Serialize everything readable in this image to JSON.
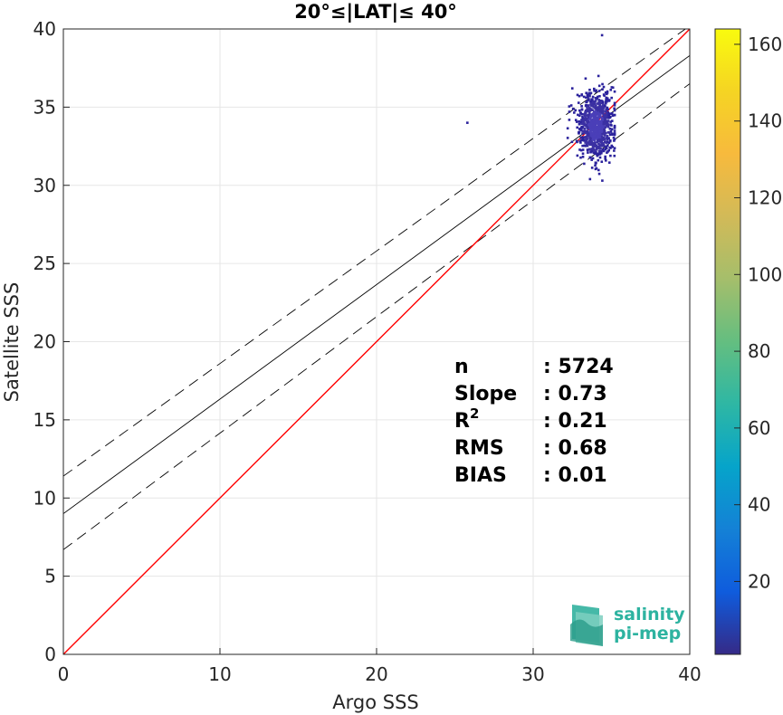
{
  "chart_data": {
    "type": "scatter",
    "title": "20°≤|LAT|≤ 40°",
    "xlabel": "Argo SSS",
    "ylabel": "Satellite SSS",
    "xlim": [
      0,
      40
    ],
    "ylim": [
      0,
      40
    ],
    "xticks": [
      "0",
      "10",
      "20",
      "30",
      "40"
    ],
    "yticks": [
      "0",
      "5",
      "10",
      "15",
      "20",
      "25",
      "30",
      "35",
      "40"
    ],
    "grid": true,
    "lines": {
      "identity": {
        "x": [
          0,
          40
        ],
        "y": [
          0,
          40
        ],
        "color": "#ff0000"
      },
      "fit": {
        "x": [
          0,
          40
        ],
        "y": [
          9.0,
          38.3
        ],
        "color": "#000000"
      },
      "upper_bound": {
        "x": [
          0,
          40
        ],
        "y": [
          11.4,
          40.2
        ],
        "color": "#000000"
      },
      "lower_bound": {
        "x": [
          0,
          40
        ],
        "y": [
          6.7,
          36.5
        ],
        "color": "#000000"
      }
    },
    "density_cluster": {
      "x_range": [
        32.2,
        35.2
      ],
      "y_range": [
        30.0,
        37.0
      ],
      "center": [
        34.0,
        33.8
      ],
      "outliers": [
        [
          34.4,
          39.6
        ],
        [
          25.8,
          34.0
        ],
        [
          32.5,
          36.2
        ]
      ]
    },
    "colorbar": {
      "ticks": [
        "20",
        "40",
        "60",
        "80",
        "100",
        "120",
        "140",
        "160"
      ],
      "range": [
        1,
        164
      ],
      "colormap": "parula"
    },
    "stats": [
      {
        "label": "n",
        "value": ": 5724"
      },
      {
        "label": "Slope",
        "value": ": 0.73"
      },
      {
        "label": "R",
        "sup": "2",
        "value": ": 0.21"
      },
      {
        "label": "RMS",
        "value": ": 0.68"
      },
      {
        "label": "BIAS",
        "value": ": 0.01"
      }
    ]
  },
  "logo": {
    "line1": "salinity",
    "line2": "pi-mep"
  }
}
